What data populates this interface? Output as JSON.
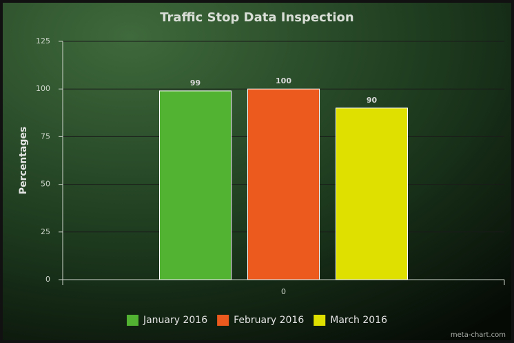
{
  "chart_data": {
    "type": "bar",
    "title": "Traffic Stop Data Inspection",
    "y_label": "Percentages",
    "categories": [
      "0"
    ],
    "series": [
      {
        "name": "January 2016",
        "color": "#52b332",
        "values": [
          99
        ]
      },
      {
        "name": "February 2016",
        "color": "#ed5a1d",
        "values": [
          100
        ]
      },
      {
        "name": "March 2016",
        "color": "#dfe000",
        "values": [
          90
        ]
      }
    ],
    "ylim": [
      0,
      125
    ],
    "yticks": [
      0,
      25,
      50,
      75,
      100,
      125
    ],
    "grid": true,
    "legend": "bottom",
    "watermark": "meta-chart.com"
  }
}
